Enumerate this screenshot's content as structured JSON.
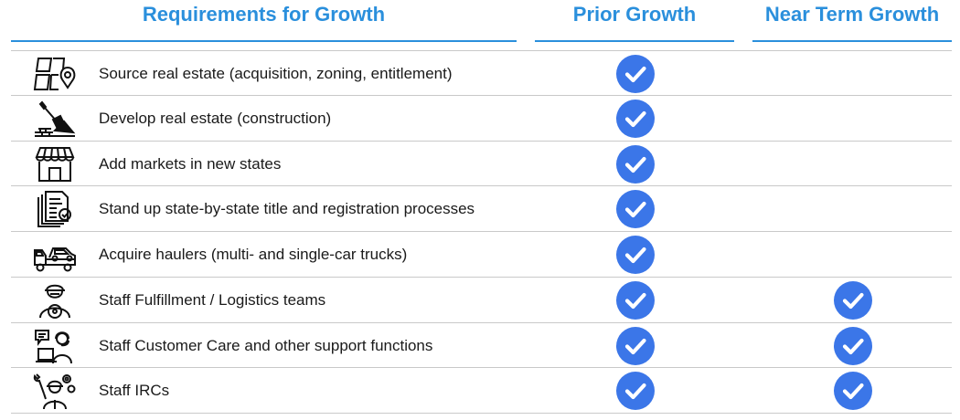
{
  "headers": {
    "requirements": "Requirements for Growth",
    "prior": "Prior Growth",
    "near_term": "Near Term Growth"
  },
  "colors": {
    "header_text": "#2a8fdc",
    "check_fill": "#3b76e8",
    "divider": "#c9c9c9"
  },
  "rows": [
    {
      "icon": "map-pin-icon",
      "label": "Source real estate (acquisition, zoning, entitlement)",
      "prior": true,
      "near_term": false
    },
    {
      "icon": "shovel-bricks-icon",
      "label": "Develop real estate (construction)",
      "prior": true,
      "near_term": false
    },
    {
      "icon": "storefront-icon",
      "label": "Add markets in new states",
      "prior": true,
      "near_term": false
    },
    {
      "icon": "document-check-icon",
      "label": "Stand up state-by-state title and registration processes",
      "prior": true,
      "near_term": false
    },
    {
      "icon": "tow-truck-icon",
      "label": "Acquire haulers (multi- and single-car trucks)",
      "prior": true,
      "near_term": false
    },
    {
      "icon": "driver-icon",
      "label": "Staff Fulfillment / Logistics teams",
      "prior": true,
      "near_term": true
    },
    {
      "icon": "support-agent-icon",
      "label": "Staff Customer Care and other support functions",
      "prior": true,
      "near_term": true
    },
    {
      "icon": "mechanic-icon",
      "label": "Staff IRCs",
      "prior": true,
      "near_term": true
    }
  ]
}
